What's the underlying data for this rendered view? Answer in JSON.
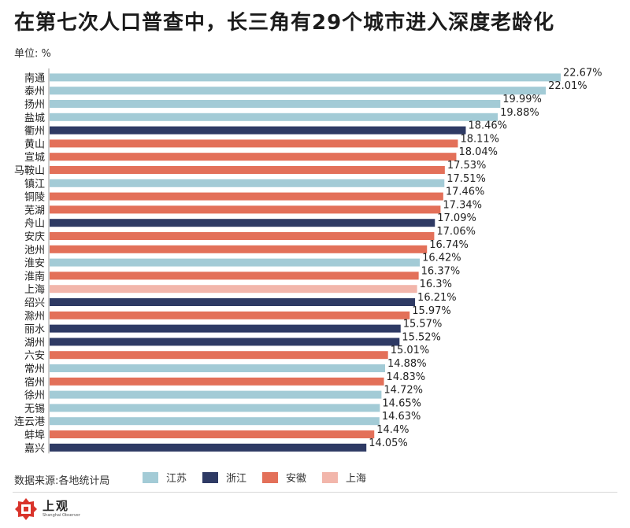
{
  "title": "在第七次人口普查中，长三角有29个城市进入深度老龄化",
  "unit_label": "单位: %",
  "source": "数据来源:各地统计局",
  "colors": {
    "江苏": "#a3cbd6",
    "浙江": "#2e3a64",
    "安徽": "#e37059",
    "上海": "#f2b6ab"
  },
  "legend": [
    {
      "name": "江苏",
      "color": "#a3cbd6"
    },
    {
      "name": "浙江",
      "color": "#2e3a64"
    },
    {
      "name": "安徽",
      "color": "#e37059"
    },
    {
      "name": "上海",
      "color": "#f2b6ab"
    }
  ],
  "logo": {
    "text": "上观",
    "subtext": "Shanghai Observer"
  },
  "chart_data": {
    "type": "bar",
    "orientation": "horizontal",
    "title": "在第七次人口普查中，长三角有29个城市进入深度老龄化",
    "ylabel": "单位: %",
    "grid": false,
    "categories": [
      "南通",
      "泰州",
      "扬州",
      "盐城",
      "衢州",
      "黄山",
      "宣城",
      "马鞍山",
      "镇江",
      "铜陵",
      "芜湖",
      "舟山",
      "安庆",
      "池州",
      "淮安",
      "淮南",
      "上海",
      "绍兴",
      "滁州",
      "丽水",
      "湖州",
      "六安",
      "常州",
      "宿州",
      "徐州",
      "无锡",
      "连云港",
      "蚌埠",
      "嘉兴"
    ],
    "values": [
      22.67,
      22.01,
      19.99,
      19.88,
      18.46,
      18.11,
      18.04,
      17.53,
      17.51,
      17.46,
      17.34,
      17.09,
      17.06,
      16.74,
      16.42,
      16.37,
      16.3,
      16.21,
      15.97,
      15.57,
      15.52,
      15.01,
      14.88,
      14.83,
      14.72,
      14.65,
      14.63,
      14.4,
      14.05
    ],
    "value_labels": [
      "22.67%",
      "22.01%",
      "19.99%",
      "19.88%",
      "18.46%",
      "18.11%",
      "18.04%",
      "17.53%",
      "17.51%",
      "17.46%",
      "17.34%",
      "17.09%",
      "17.06%",
      "16.74%",
      "16.42%",
      "16.37%",
      "16.3%",
      "16.21%",
      "15.97%",
      "15.57%",
      "15.52%",
      "15.01%",
      "14.88%",
      "14.83%",
      "14.72%",
      "14.65%",
      "14.63%",
      "14.4%",
      "14.05%"
    ],
    "groups": [
      "江苏",
      "江苏",
      "江苏",
      "江苏",
      "浙江",
      "安徽",
      "安徽",
      "安徽",
      "江苏",
      "安徽",
      "安徽",
      "浙江",
      "安徽",
      "安徽",
      "江苏",
      "安徽",
      "上海",
      "浙江",
      "安徽",
      "浙江",
      "浙江",
      "安徽",
      "江苏",
      "安徽",
      "江苏",
      "江苏",
      "江苏",
      "安徽",
      "浙江"
    ],
    "xlim": [
      0,
      22.67
    ],
    "legend_position": "bottom"
  }
}
